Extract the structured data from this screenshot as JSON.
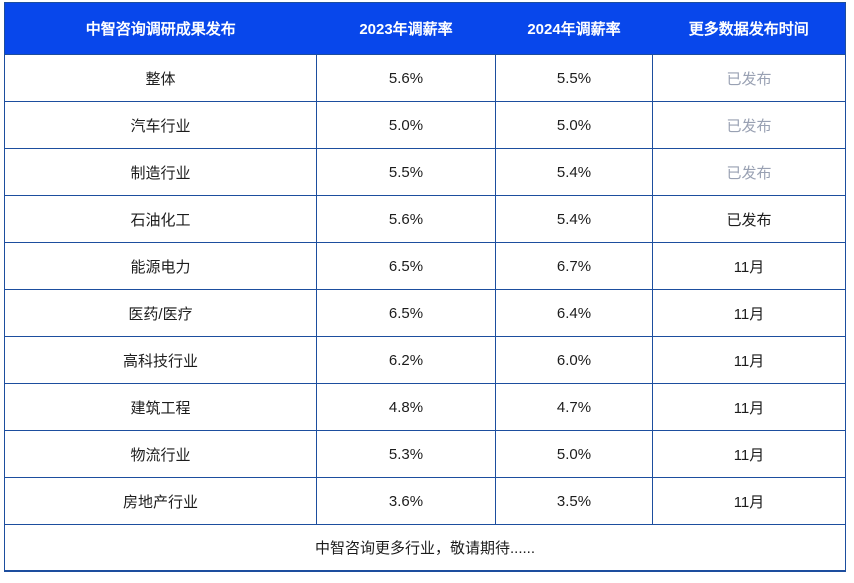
{
  "colors": {
    "header_bg": "#0847eb",
    "border": "#1d4e9e",
    "text": "#1c1c1c",
    "muted_text": "#99a1b3"
  },
  "chart_data": {
    "type": "table",
    "title": "中智咨询调研成果发布",
    "columns": [
      "中智咨询调研成果发布",
      "2023年调薪率",
      "2024年调薪率",
      "更多数据发布时间"
    ],
    "rows": [
      [
        "整体",
        "5.6%",
        "5.5%",
        "已发布"
      ],
      [
        "汽车行业",
        "5.0%",
        "5.0%",
        "已发布"
      ],
      [
        "制造行业",
        "5.5%",
        "5.4%",
        "已发布"
      ],
      [
        "石油化工",
        "5.6%",
        "5.4%",
        "已发布"
      ],
      [
        "能源电力",
        "6.5%",
        "6.7%",
        "11月"
      ],
      [
        "医药/医疗",
        "6.5%",
        "6.4%",
        "11月"
      ],
      [
        "高科技行业",
        "6.2%",
        "6.0%",
        "11月"
      ],
      [
        "建筑工程",
        "4.8%",
        "4.7%",
        "11月"
      ],
      [
        "物流行业",
        "5.3%",
        "5.0%",
        "11月"
      ],
      [
        "房地产行业",
        "3.6%",
        "3.5%",
        "11月"
      ]
    ],
    "footer": "中智咨询更多行业，敬请期待......"
  }
}
